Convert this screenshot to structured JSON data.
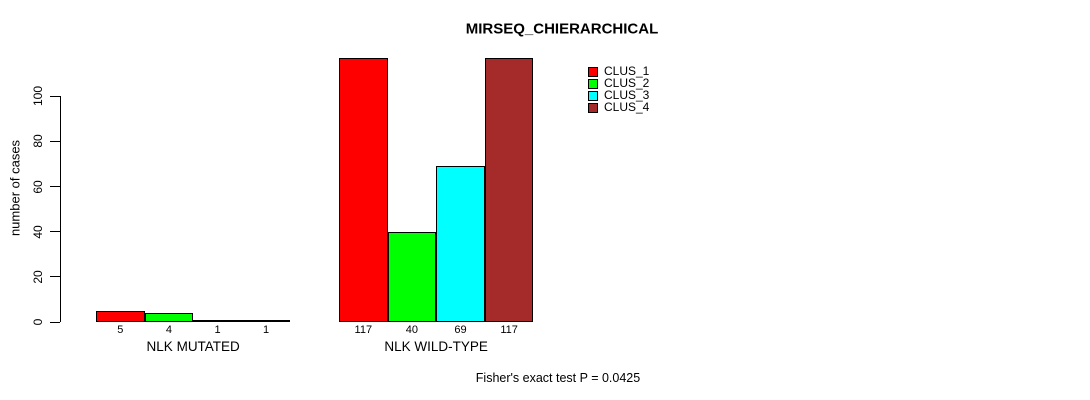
{
  "title": "MIRSEQ_CHIERARCHICAL",
  "chart_data": {
    "type": "bar",
    "title": "MIRSEQ_CHIERARCHICAL",
    "ylabel": "number of cases",
    "xlabel": "",
    "yticks": [
      0,
      20,
      40,
      60,
      80,
      100
    ],
    "ylim": [
      0,
      117
    ],
    "grid": false,
    "legend_position": "top-right-inside",
    "bar_outline_color": "#000000",
    "categories": [
      "NLK MUTATED",
      "NLK WILD-TYPE"
    ],
    "groups": [
      {
        "label": "NLK MUTATED",
        "values": [
          5,
          4,
          1,
          1
        ]
      },
      {
        "label": "NLK WILD-TYPE",
        "values": [
          117,
          40,
          69,
          117
        ]
      }
    ],
    "series": [
      {
        "name": "CLUS_1",
        "color": "#FF0000"
      },
      {
        "name": "CLUS_2",
        "color": "#00FF00"
      },
      {
        "name": "CLUS_3",
        "color": "#00FFFF"
      },
      {
        "name": "CLUS_4",
        "color": "#A52A2A"
      }
    ],
    "annotation": "Fisher's exact test P = 0.0425"
  }
}
